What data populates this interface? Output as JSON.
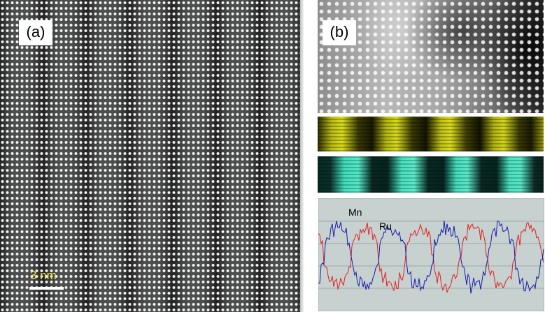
{
  "panel_a": {
    "label": "(a)",
    "scale_bar_text": "3 nm"
  },
  "panel_b": {
    "label": "(b)"
  },
  "line_profile": {
    "series": [
      {
        "name": "Mn",
        "color": "#1a1aa8"
      },
      {
        "name": "Ru",
        "color": "#e02020"
      }
    ],
    "background": "#c6d1d0"
  }
}
